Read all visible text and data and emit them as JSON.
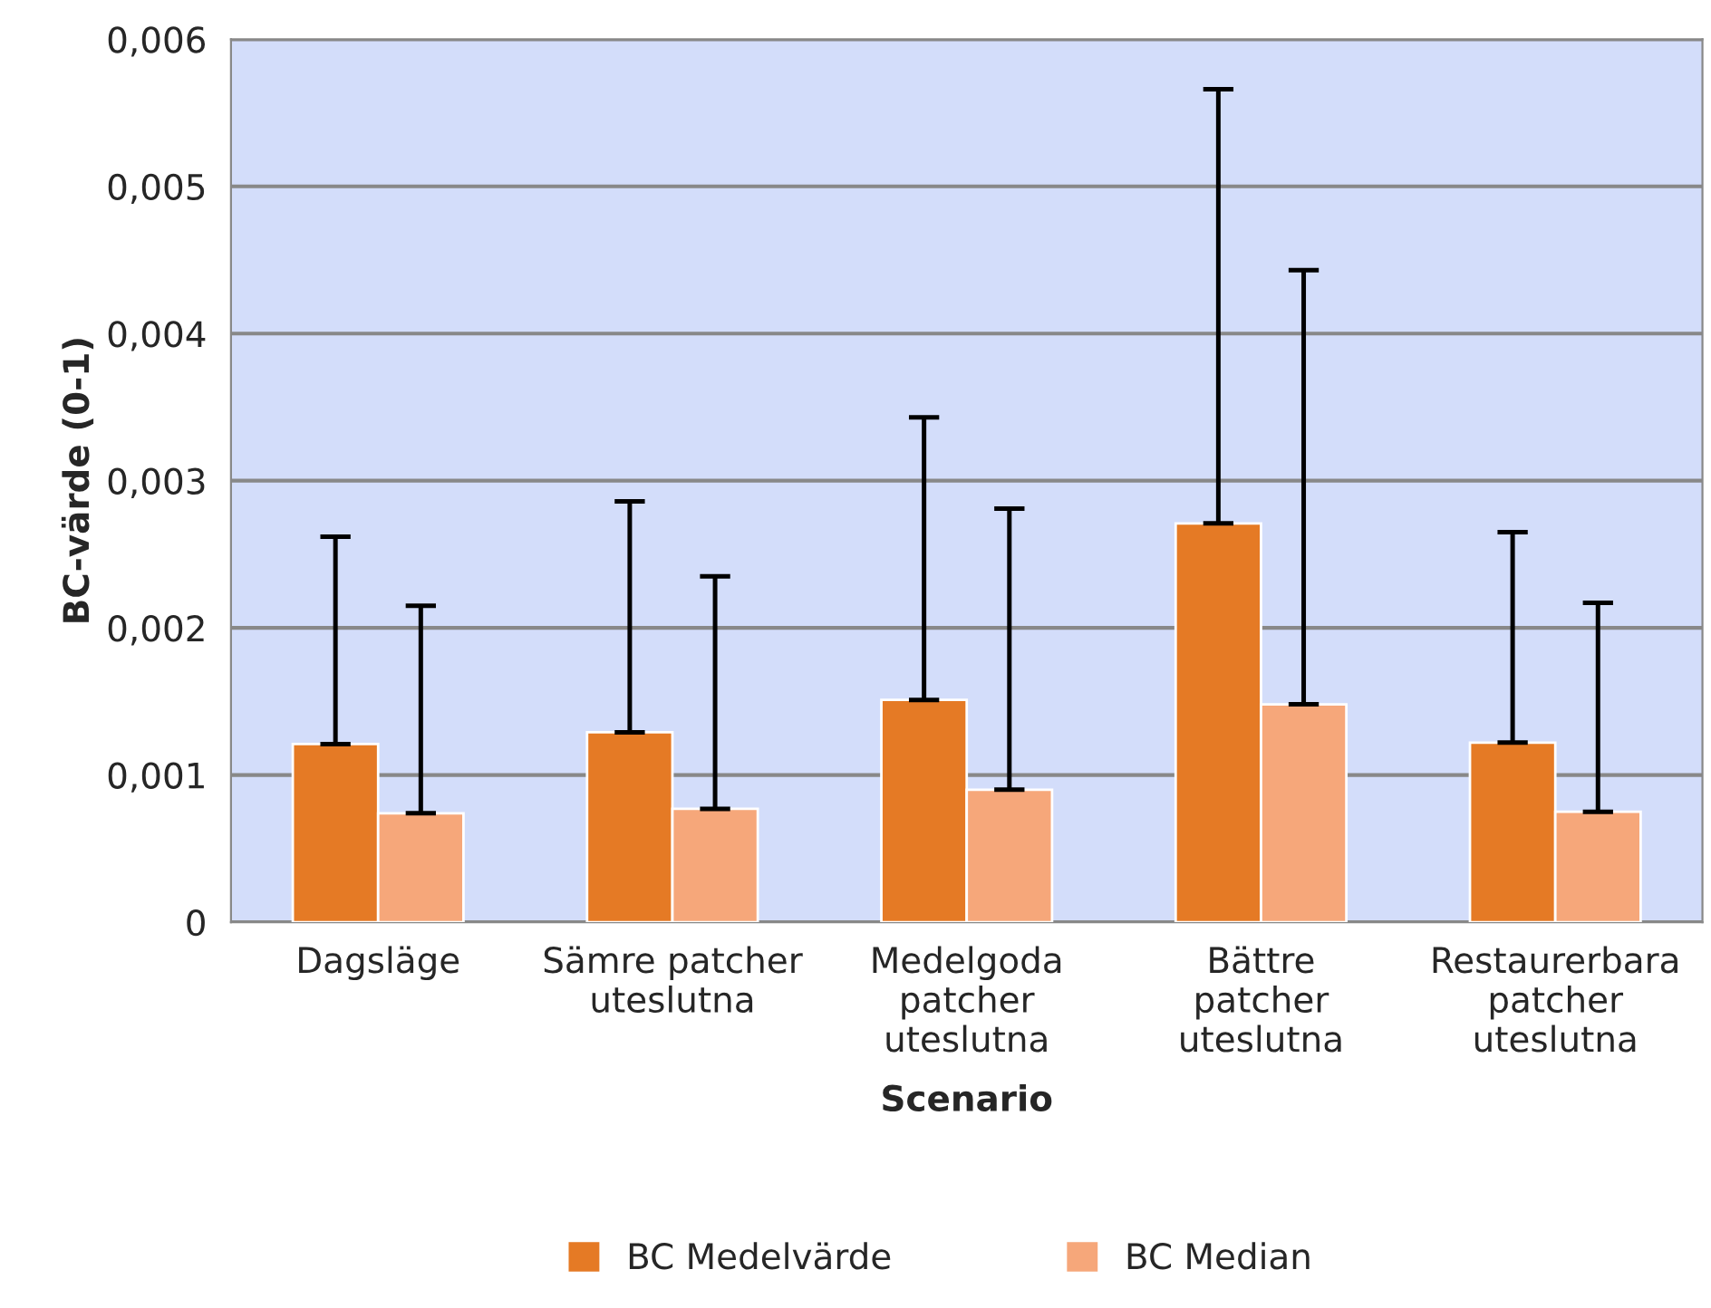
{
  "chart_data": {
    "type": "bar",
    "xlabel": "Scenario",
    "ylabel": "BC-värde (0-1)",
    "categories": [
      "Dagsläge",
      "Sämre patcher uteslutna",
      "Medelgoda patcher uteslutna",
      "Bättre patcher uteslutna",
      "Restaurerbara patcher uteslutna"
    ],
    "series": [
      {
        "name": "BC Medelvärde",
        "color": "#e57a25",
        "values": [
          0.00121,
          0.00129,
          0.00151,
          0.00271,
          0.00122
        ],
        "errors": [
          [
            0.00121,
            0.00262
          ],
          [
            0.00129,
            0.00286
          ],
          [
            0.00151,
            0.00343
          ],
          [
            0.00271,
            0.00566
          ],
          [
            0.00122,
            0.00265
          ]
        ]
      },
      {
        "name": "BC Median",
        "color": "#f6a77a",
        "values": [
          0.00074,
          0.00077,
          0.0009,
          0.00148,
          0.00075
        ],
        "errors": [
          [
            0.00074,
            0.00215
          ],
          [
            0.00077,
            0.00235
          ],
          [
            0.0009,
            0.00281
          ],
          [
            0.00148,
            0.00443
          ],
          [
            0.00075,
            0.00217
          ]
        ]
      }
    ],
    "ylim": [
      0,
      0.006
    ],
    "yticks": [
      {
        "value": 0,
        "label": "0"
      },
      {
        "value": 0.001,
        "label": "0,001"
      },
      {
        "value": 0.002,
        "label": "0,002"
      },
      {
        "value": 0.003,
        "label": "0,003"
      },
      {
        "value": 0.004,
        "label": "0,004"
      },
      {
        "value": 0.005,
        "label": "0,005"
      },
      {
        "value": 0.006,
        "label": "0,006"
      }
    ],
    "grid": "y",
    "legend": "bottom"
  }
}
